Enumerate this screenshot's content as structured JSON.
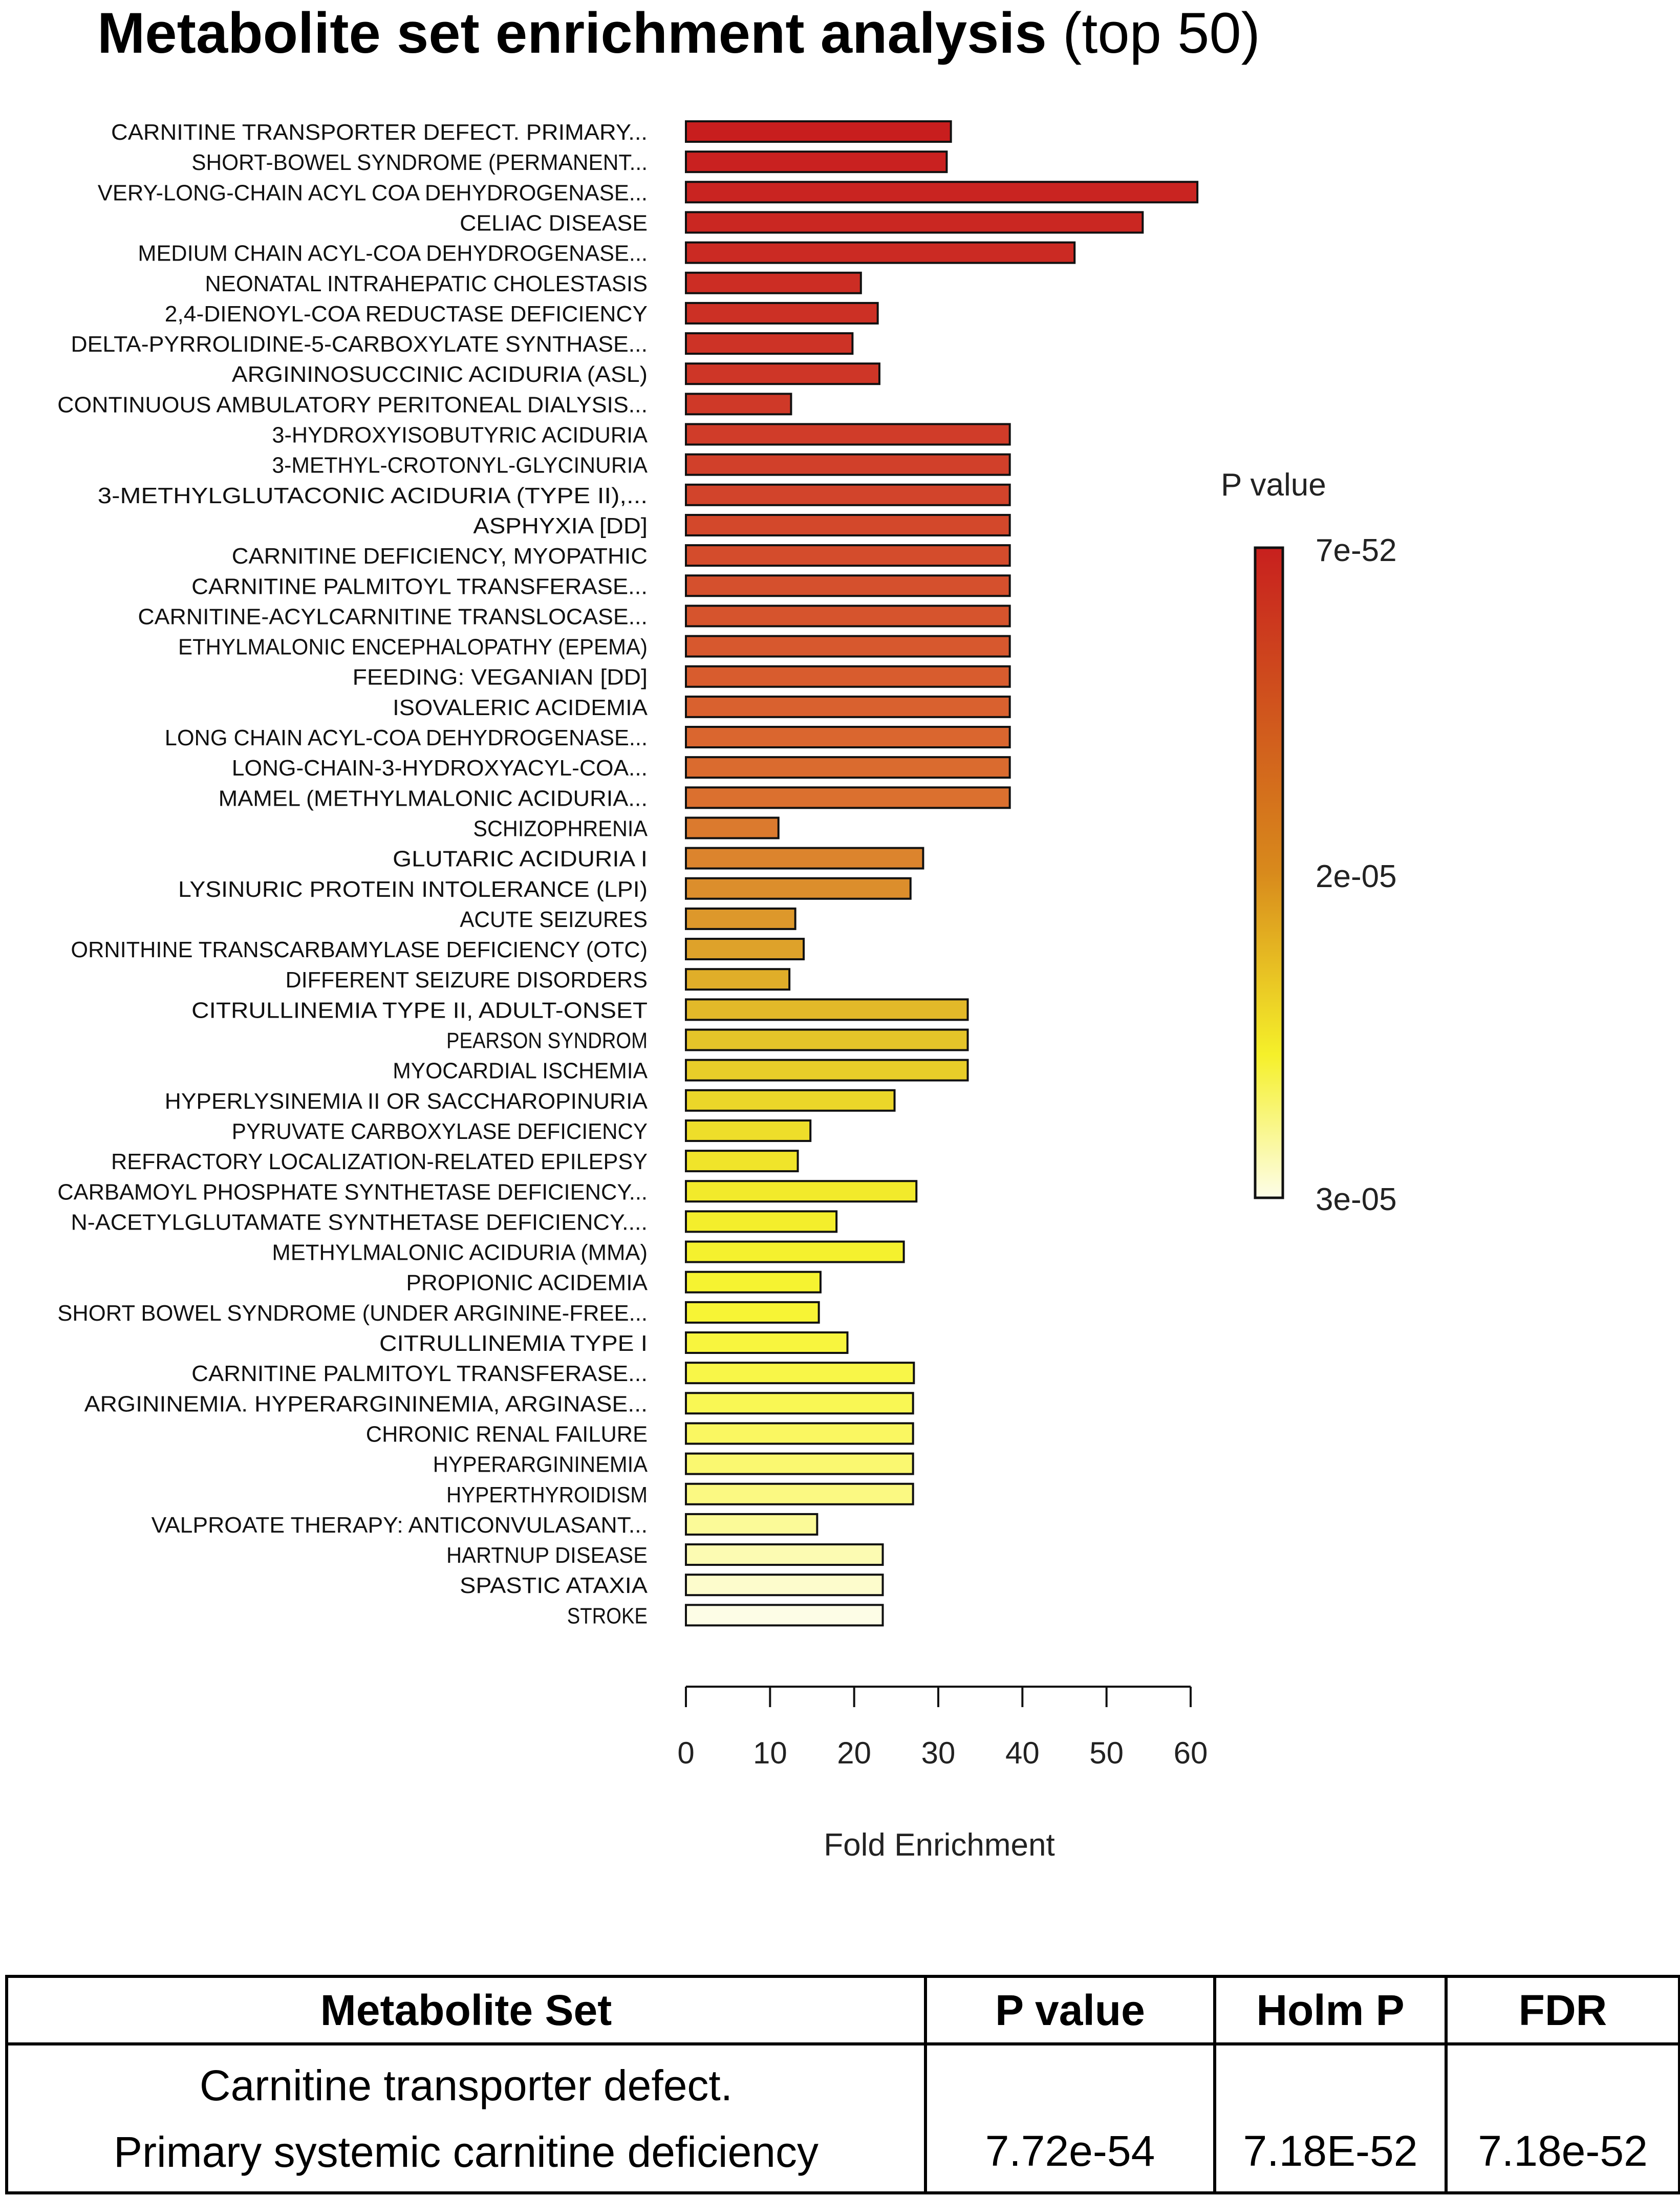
{
  "title": {
    "main": "Metabolite set enrichment analysis",
    "suffix": "(top 50)"
  },
  "chart_data": {
    "type": "bar",
    "orientation": "horizontal",
    "xlabel": "Fold Enrichment",
    "xlim": [
      0,
      60
    ],
    "xticks": [
      0,
      10,
      20,
      30,
      40,
      50,
      60
    ],
    "legend": {
      "title": "P value",
      "labels": [
        "7e-52",
        "2e-05",
        "3e-05"
      ],
      "colors": [
        "#c8201e",
        "#d88a1c",
        "#f7f72a",
        "#fdfde8"
      ]
    },
    "categories": [
      "CARNITINE TRANSPORTER DEFECT. PRIMARY...",
      "SHORT-BOWEL SYNDROME (PERMANENT...",
      "VERY-LONG-CHAIN ACYL COA DEHYDROGENASE...",
      "CELIAC DISEASE",
      "MEDIUM CHAIN ACYL-COA DEHYDROGENASE...",
      "NEONATAL INTRAHEPATIC CHOLESTASIS",
      "2,4-DIENOYL-COA REDUCTASE DEFICIENCY",
      "DELTA-PYRROLIDINE-5-CARBOXYLATE SYNTHASE...",
      "ARGININOSUCCINIC ACIDURIA (ASL)",
      "CONTINUOUS AMBULATORY PERITONEAL DIALYSIS...",
      "3-HYDROXYISOBUTYRIC ACIDURIA",
      "3-METHYL-CROTONYL-GLYCINURIA",
      "3-METHYLGLUTACONIC ACIDURIA (TYPE II),...",
      "ASPHYXIA [DD]",
      "CARNITINE DEFICIENCY, MYOPATHIC",
      "CARNITINE PALMITOYL TRANSFERASE...",
      "CARNITINE-ACYLCARNITINE TRANSLOCASE...",
      "ETHYLMALONIC ENCEPHALOPATHY (EPEMA)",
      "FEEDING: VEGANIAN [DD]",
      "ISOVALERIC ACIDEMIA",
      "LONG CHAIN ACYL-COA DEHYDROGENASE...",
      "LONG-CHAIN-3-HYDROXYACYL-COA...",
      "MAMEL (METHYLMALONIC ACIDURIA...",
      "SCHIZOPHRENIA",
      "GLUTARIC ACIDURIA I",
      "LYSINURIC PROTEIN INTOLERANCE (LPI)",
      "ACUTE SEIZURES",
      "ORNITHINE TRANSCARBAMYLASE DEFICIENCY (OTC)",
      "DIFFERENT SEIZURE DISORDERS",
      "CITRULLINEMIA TYPE II, ADULT-ONSET",
      "PEARSON SYNDROM",
      "MYOCARDIAL ISCHEMIA",
      "HYPERLYSINEMIA II OR SACCHAROPINURIA",
      "PYRUVATE CARBOXYLASE DEFICIENCY",
      "REFRACTORY LOCALIZATION-RELATED EPILEPSY",
      "CARBAMOYL PHOSPHATE SYNTHETASE DEFICIENCY...",
      "N-ACETYLGLUTAMATE SYNTHETASE DEFICIENCY....",
      "METHYLMALONIC ACIDURIA (MMA)",
      "PROPIONIC ACIDEMIA",
      "SHORT BOWEL SYNDROME (UNDER ARGININE-FREE...",
      "CITRULLINEMIA TYPE I",
      "CARNITINE PALMITOYL TRANSFERASE...",
      "ARGININEMIA. HYPERARGININEMIA, ARGINASE...",
      "CHRONIC RENAL FAILURE",
      "HYPERARGININEMIA",
      "HYPERTHYROIDISM",
      "VALPROATE THERAPY: ANTICONVULASANT...",
      "HARTNUP DISEASE",
      "SPASTIC ATAXIA",
      "STROKE"
    ],
    "values": [
      31.5,
      31.0,
      60.8,
      54.3,
      46.2,
      20.8,
      22.8,
      19.8,
      23.0,
      12.5,
      38.5,
      38.5,
      38.5,
      38.5,
      38.5,
      38.5,
      38.5,
      38.5,
      38.5,
      38.5,
      38.5,
      38.5,
      38.5,
      11.0,
      28.2,
      26.7,
      13.0,
      14.0,
      12.3,
      33.5,
      33.5,
      33.5,
      24.8,
      14.8,
      13.3,
      27.4,
      17.9,
      25.9,
      16.0,
      15.8,
      19.2,
      27.1,
      27.0,
      27.0,
      27.0,
      27.0,
      15.6,
      23.4,
      23.4,
      23.4
    ],
    "colors": [
      "#c81e1e",
      "#c92120",
      "#c92421",
      "#ca2722",
      "#cb2a23",
      "#cc2d24",
      "#cc3025",
      "#cd3326",
      "#ce3627",
      "#cf3928",
      "#d03c29",
      "#d1402a",
      "#d2442b",
      "#d3482b",
      "#d44c2c",
      "#d5502d",
      "#d6542d",
      "#d7582e",
      "#d85c2e",
      "#d9612f",
      "#da662f",
      "#da6b2f",
      "#db702f",
      "#db7a2e",
      "#dc842d",
      "#dc8e2c",
      "#dd982b",
      "#dea22a",
      "#e0ae29",
      "#e2b929",
      "#e5c429",
      "#e8cd29",
      "#ebd629",
      "#eede2a",
      "#f0e42a",
      "#f2ea2b",
      "#f4ee2c",
      "#f5f12e",
      "#f6f331",
      "#f7f435",
      "#f8f53e",
      "#f8f648",
      "#f9f754",
      "#faf761",
      "#faf870",
      "#fbf982",
      "#fbfa98",
      "#fcfbb2",
      "#fdfccc",
      "#fdfde6"
    ]
  },
  "table": {
    "headers": [
      "Metabolite Set",
      "P value",
      "Holm P",
      "FDR"
    ],
    "row": {
      "set_line1": "Carnitine transporter defect.",
      "set_line2": "Primary systemic carnitine deficiency",
      "p_value": "7.72e-54",
      "holm_p": "7.18E-52",
      "fdr": "7.18e-52"
    }
  }
}
